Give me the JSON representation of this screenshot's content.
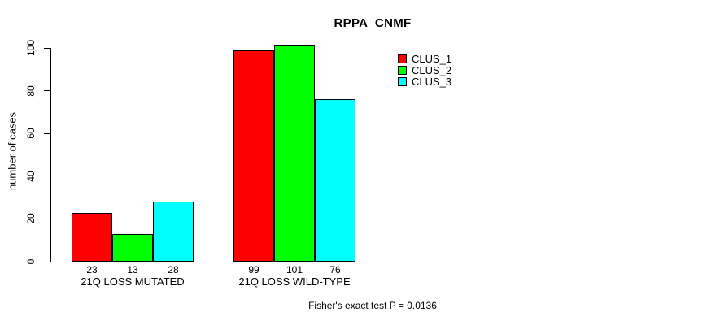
{
  "chart_data": {
    "type": "bar",
    "title": "RPPA_CNMF",
    "ylabel": "number of cases",
    "xlabel": "",
    "categories": [
      "21Q LOSS MUTATED",
      "21Q LOSS WILD-TYPE"
    ],
    "series": [
      {
        "name": "CLUS_1",
        "color": "#ff0000",
        "values": [
          23,
          99
        ]
      },
      {
        "name": "CLUS_2",
        "color": "#00ff00",
        "values": [
          13,
          101
        ]
      },
      {
        "name": "CLUS_3",
        "color": "#00ffff",
        "values": [
          28,
          76
        ]
      }
    ],
    "yticks": [
      0,
      20,
      40,
      60,
      80,
      100
    ],
    "ylim": [
      0,
      101
    ],
    "grid": false,
    "bar_labels_shown": true,
    "legend_position": "top-right",
    "annotation": "Fisher's exact test P = 0.0136"
  }
}
